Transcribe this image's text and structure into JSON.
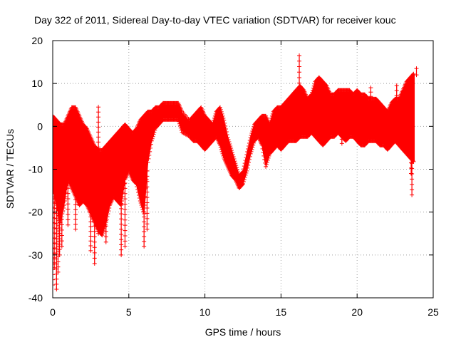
{
  "chart_data": {
    "type": "scatter",
    "title": "Day 322 of 2011, Sidereal Day-to-day VTEC variation (SDTVAR) for receiver kouc",
    "xlabel": "GPS time / hours",
    "ylabel": "SDTVAR / TECUs",
    "xlim": [
      0,
      25
    ],
    "ylim": [
      -40,
      20
    ],
    "xticks": [
      "0",
      "5",
      "10",
      "15",
      "20",
      "25"
    ],
    "yticks": [
      "-40",
      "-30",
      "-20",
      "-10",
      "0",
      "10",
      "20"
    ],
    "grid": true,
    "marker": "+",
    "series_color": "#ff0000",
    "envelope": {
      "x": [
        0.0,
        0.25,
        0.5,
        0.75,
        1.0,
        1.25,
        1.5,
        1.75,
        2.0,
        2.25,
        2.5,
        2.75,
        3.0,
        3.25,
        3.5,
        3.75,
        4.0,
        4.25,
        4.5,
        4.75,
        5.0,
        5.25,
        5.5,
        5.75,
        6.0,
        6.25,
        6.5,
        6.75,
        7.0,
        7.25,
        7.5,
        7.75,
        8.0,
        8.25,
        8.5,
        9.0,
        9.25,
        9.5,
        9.75,
        10.0,
        10.25,
        10.5,
        10.75,
        11.0,
        11.25,
        11.5,
        11.75,
        12.0,
        12.25,
        12.5,
        12.75,
        13.0,
        13.25,
        13.5,
        13.75,
        14.0,
        14.25,
        14.5,
        14.75,
        15.0,
        15.25,
        15.5,
        15.75,
        16.0,
        16.25,
        16.5,
        16.75,
        17.0,
        17.25,
        17.5,
        17.75,
        18.0,
        18.25,
        18.5,
        18.75,
        19.0,
        19.25,
        19.5,
        19.75,
        20.0,
        20.25,
        20.5,
        20.75,
        21.0,
        21.25,
        21.5,
        21.75,
        22.0,
        22.25,
        22.5,
        22.75,
        23.0,
        23.25,
        23.5,
        23.75
      ],
      "upper": [
        2,
        1,
        0,
        0,
        2,
        4,
        4,
        2,
        0,
        -1,
        -3,
        -5,
        -6,
        -6,
        -5,
        -4,
        -3,
        -2,
        -1,
        0,
        -1,
        -2,
        -1,
        1,
        2,
        3,
        3,
        4,
        4,
        5,
        5,
        5,
        5,
        5,
        3,
        1,
        2,
        3,
        4,
        2,
        1,
        0,
        3,
        4,
        1,
        -3,
        -6,
        -9,
        -12,
        -11,
        -7,
        -3,
        0,
        1,
        2,
        2,
        0,
        3,
        4,
        4,
        5,
        6,
        7,
        8,
        9,
        8,
        6,
        7,
        10,
        11,
        10,
        9,
        7,
        7,
        8,
        8,
        8,
        8,
        7,
        8,
        7,
        7,
        6,
        6,
        6,
        5,
        4,
        3,
        5,
        6,
        6,
        8,
        10,
        11,
        12
      ],
      "lower": [
        -14,
        -18,
        -22,
        -18,
        -12,
        -14,
        -16,
        -18,
        -17,
        -18,
        -20,
        -22,
        -24,
        -25,
        -22,
        -18,
        -16,
        -17,
        -18,
        -12,
        -10,
        -12,
        -13,
        -17,
        -20,
        -8,
        -3,
        0,
        1,
        2,
        2,
        2,
        2,
        2,
        -1,
        -2,
        -3,
        -3,
        -4,
        -5,
        -4,
        -3,
        -2,
        -4,
        -7,
        -9,
        -11,
        -12,
        -14,
        -13,
        -10,
        -6,
        -3,
        -2,
        -4,
        -9,
        -6,
        -5,
        -4,
        -5,
        -4,
        -3,
        -3,
        -3,
        -2,
        -2,
        -2,
        -1,
        -2,
        -3,
        -4,
        -3,
        -2,
        -2,
        -1,
        -2,
        -3,
        -2,
        -2,
        -3,
        -4,
        -4,
        -3,
        -3,
        -3,
        -4,
        -4,
        -5,
        -4,
        -3,
        -4,
        -5,
        -6,
        -7,
        -8
      ]
    },
    "spikes": [
      {
        "x": 0.0,
        "y": -37
      },
      {
        "x": 0.1,
        "y": -33
      },
      {
        "x": 0.25,
        "y": -38
      },
      {
        "x": 0.35,
        "y": -34
      },
      {
        "x": 0.45,
        "y": -30
      },
      {
        "x": 0.6,
        "y": -28
      },
      {
        "x": 1.0,
        "y": -23
      },
      {
        "x": 1.5,
        "y": -24
      },
      {
        "x": 2.5,
        "y": -29
      },
      {
        "x": 2.75,
        "y": -32
      },
      {
        "x": 3.0,
        "y": -25
      },
      {
        "x": 3.5,
        "y": -27
      },
      {
        "x": 4.5,
        "y": -30
      },
      {
        "x": 4.75,
        "y": -28
      },
      {
        "x": 6.0,
        "y": -28
      },
      {
        "x": 6.2,
        "y": -24
      },
      {
        "x": 3.0,
        "y": 4.5
      },
      {
        "x": 16.2,
        "y": 16.5
      },
      {
        "x": 20.9,
        "y": 9
      },
      {
        "x": 22.6,
        "y": 9.5
      },
      {
        "x": 23.9,
        "y": 13.5
      },
      {
        "x": 23.6,
        "y": -16
      },
      {
        "x": 23.55,
        "y": -11
      },
      {
        "x": 17.0,
        "y": -1
      },
      {
        "x": 19.0,
        "y": -4
      }
    ]
  }
}
